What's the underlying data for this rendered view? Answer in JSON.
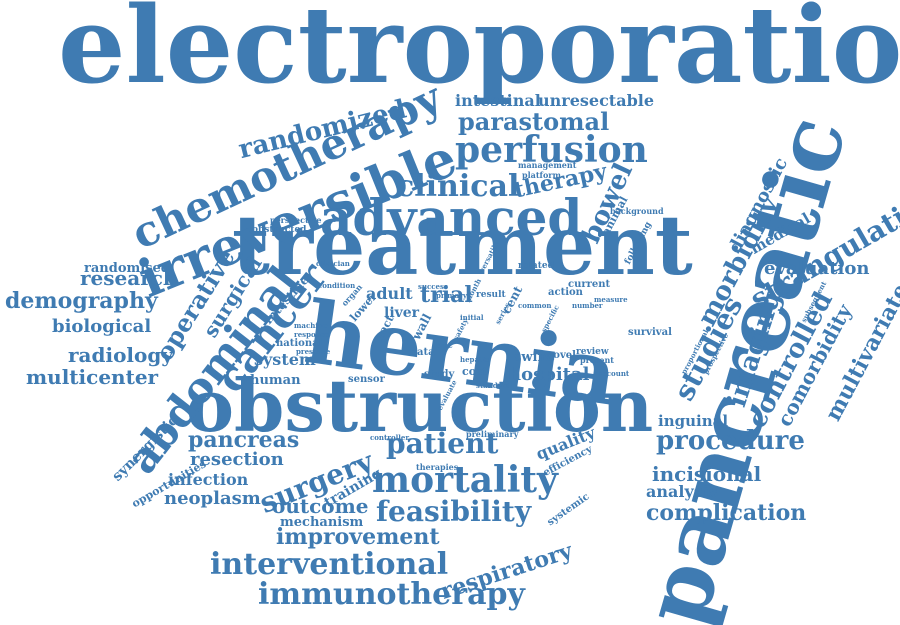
{
  "cloud": {
    "color": "#3f7bb2",
    "words": [
      "electroporation",
      "pancreatic",
      "hernia",
      "treatment",
      "obstruction",
      "irreversible",
      "advanced",
      "chemotherapy",
      "abdominal",
      "cancer",
      "perfusion",
      "parastomal",
      "randomized",
      "intestinal",
      "unresectable",
      "clinical",
      "therapy",
      "bowel",
      "strangulation",
      "morbidity",
      "diagnostic",
      "imaging",
      "studies",
      "controlled",
      "comorbidity",
      "multivariate",
      "medical",
      "evaluation",
      "surgical",
      "operative",
      "research",
      "randomised",
      "demography",
      "biological",
      "radiology",
      "multicenter",
      "system",
      "human",
      "national",
      "intestine",
      "adult",
      "trial",
      "liver",
      "data",
      "sensor",
      "study",
      "cost",
      "hospital",
      "swine",
      "novel",
      "patient",
      "surgery",
      "pancreas",
      "resection",
      "infection",
      "neoplasm",
      "synergistic",
      "opportunities",
      "training",
      "outcome",
      "mechanism",
      "mortality",
      "feasibility",
      "improvement",
      "interventional",
      "immunotherapy",
      "respiratory",
      "quality",
      "efficiency",
      "systemic",
      "procedure",
      "inguinal",
      "incisional",
      "analysis",
      "complication",
      "survival",
      "review",
      "present",
      "current",
      "action",
      "related",
      "following",
      "animal",
      "background",
      "management",
      "platform",
      "perspective",
      "obstructed",
      "clinician",
      "condition",
      "organ",
      "lower",
      "result",
      "cent",
      "tract",
      "machine",
      "response",
      "pressure",
      "lapc",
      "wall",
      "controller",
      "preliminary",
      "therapies",
      "standard",
      "evaluate",
      "prospective",
      "proportional",
      "subsequent",
      "common",
      "number",
      "measure",
      "series",
      "account",
      "specific",
      "hepatic",
      "success",
      "primary",
      "versatile",
      "month",
      "initial",
      "safety"
    ]
  }
}
